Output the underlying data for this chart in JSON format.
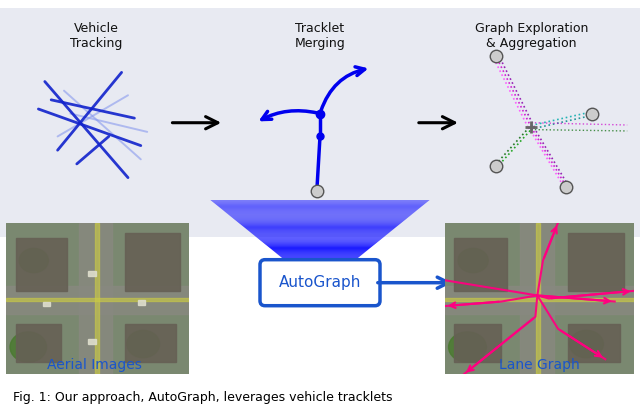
{
  "fig_width": 6.4,
  "fig_height": 4.16,
  "dpi": 100,
  "bg_color": "#ffffff",
  "top_panel_bg": "#e8eaf2",
  "caption": "Fig. 1: Our approach, AutoGraph, leverages vehicle tracklets",
  "caption_color": "#000000",
  "caption_fontsize": 9.0,
  "labels": {
    "vehicle_tracking": "Vehicle\nTracking",
    "tracklet_merging": "Tracklet\nMerging",
    "graph_exploration": "Graph Exploration\n& Aggregation",
    "aerial_images": "Aerial Images",
    "lane_graph": "Lane Graph",
    "autograph": "AutoGraph"
  },
  "label_color_blue": "#1a55cc",
  "label_color_black": "#111111",
  "tracking_color_dark": "#1122cc",
  "tracking_color_light": "#8899ee",
  "merge_color": "#0000ee",
  "node_gray": "#999999",
  "node_edge": "#555555",
  "graph_colors": [
    "#ff00ff",
    "#cc00cc",
    "#00aaaa",
    "#005500",
    "#6600cc"
  ],
  "autograph_box_edge": "#1a55cc",
  "autograph_text_color": "#1a55cc",
  "funnel_color_top": "#aaaaff",
  "funnel_color_bottom": "#2222ee",
  "arrow_color": "#1a55cc"
}
